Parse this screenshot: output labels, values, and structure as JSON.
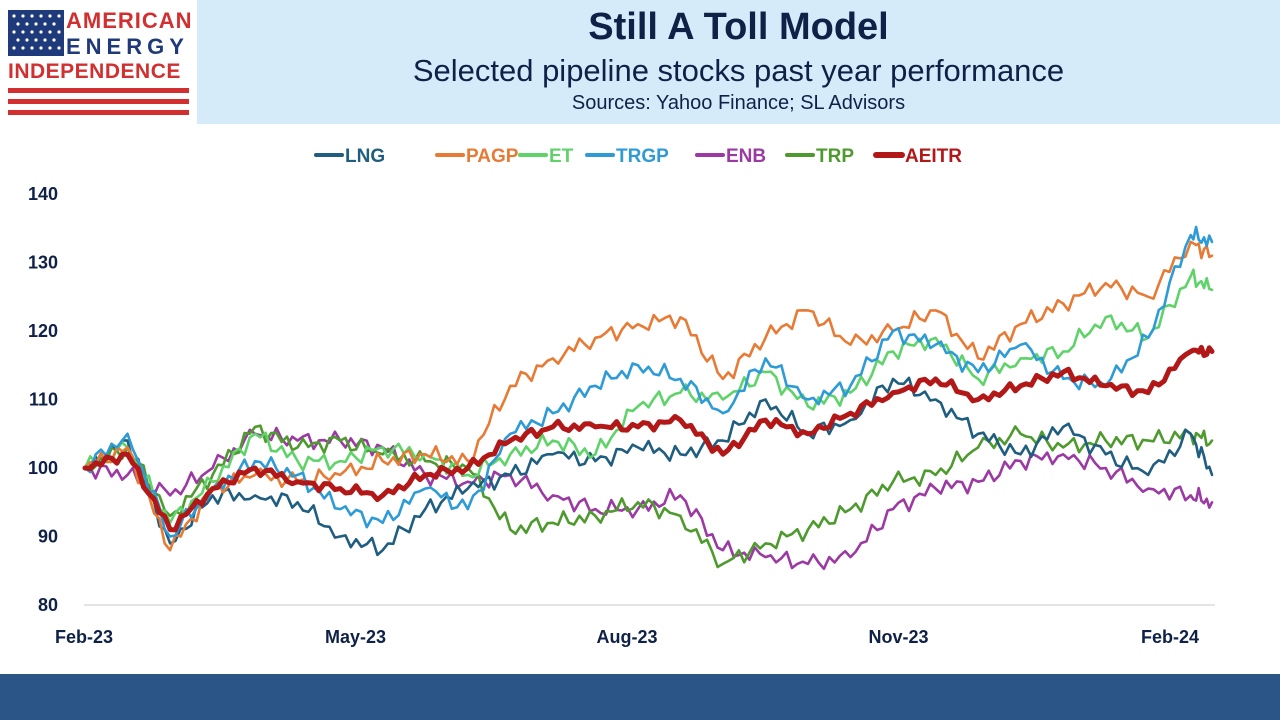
{
  "logo": {
    "line1": "AMERICAN",
    "line2": "ENERGY",
    "line3": "INDEPENDENCE",
    "colors": {
      "red": "#d23030",
      "blue": "#1f3a7a"
    }
  },
  "header": {
    "title": "Still A Toll Model",
    "subtitle": "Selected pipeline stocks past year performance",
    "sources": "Sources: Yahoo Finance; SL Advisors"
  },
  "chart_data": {
    "type": "line",
    "title": "Still A Toll Model",
    "subtitle": "Selected pipeline stocks past year performance",
    "x_tick_labels": [
      "Feb-23",
      "May-23",
      "Aug-23",
      "Nov-23",
      "Feb-24"
    ],
    "y_ticks": [
      80,
      90,
      100,
      110,
      120,
      130,
      140
    ],
    "ylim": [
      80,
      140
    ],
    "grid": false,
    "legend_position": "top",
    "x": [
      "2023-02-17",
      "2023-03-03",
      "2023-03-17",
      "2023-03-31",
      "2023-04-14",
      "2023-04-28",
      "2023-05-12",
      "2023-05-26",
      "2023-06-09",
      "2023-06-23",
      "2023-07-07",
      "2023-07-21",
      "2023-08-04",
      "2023-08-18",
      "2023-09-01",
      "2023-09-15",
      "2023-09-29",
      "2023-10-13",
      "2023-10-27",
      "2023-11-10",
      "2023-11-24",
      "2023-12-08",
      "2023-12-22",
      "2024-01-05",
      "2024-01-19",
      "2024-02-02",
      "2024-02-16",
      "2024-02-23"
    ],
    "series": [
      {
        "name": "LNG",
        "color": "#1f5e80",
        "values": [
          100,
          104,
          89,
          96,
          96,
          95,
          90,
          88,
          94,
          97,
          99,
          102,
          101,
          103,
          102,
          104,
          110,
          105,
          107,
          113,
          110,
          105,
          102,
          106,
          102,
          99,
          105,
          99
        ]
      },
      {
        "name": "PAGP",
        "color": "#e77b35",
        "values": [
          100,
          103,
          88,
          97,
          99,
          98,
          99,
          101,
          102,
          101,
          112,
          116,
          119,
          121,
          122,
          113,
          119,
          123,
          118,
          120,
          123,
          116,
          121,
          124,
          127,
          125,
          133,
          131
        ]
      },
      {
        "name": "ET",
        "color": "#5fd36a",
        "values": [
          100,
          103,
          92,
          98,
          105,
          101,
          101,
          103,
          102,
          99,
          102,
          104,
          102,
          109,
          111,
          110,
          114,
          109,
          111,
          117,
          119,
          113,
          116,
          117,
          122,
          119,
          128,
          126
        ]
      },
      {
        "name": "TRGP",
        "color": "#2e9bd6",
        "values": [
          100,
          105,
          90,
          97,
          101,
          99,
          94,
          92,
          97,
          94,
          105,
          108,
          112,
          115,
          113,
          108,
          116,
          110,
          112,
          120,
          118,
          114,
          118,
          113,
          112,
          119,
          134,
          133
        ]
      },
      {
        "name": "ENB",
        "color": "#9b3aa3",
        "values": [
          100,
          99,
          96,
          100,
          105,
          104,
          104,
          103,
          99,
          98,
          99,
          96,
          94,
          94,
          96,
          88,
          87,
          86,
          87,
          94,
          97,
          98,
          101,
          102,
          100,
          97,
          96,
          95
        ]
      },
      {
        "name": "TRP",
        "color": "#4e9a2e",
        "values": [
          100,
          103,
          93,
          99,
          106,
          103,
          104,
          102,
          101,
          100,
          91,
          92,
          93,
          95,
          93,
          86,
          89,
          91,
          94,
          98,
          99,
          103,
          105,
          103,
          104,
          104,
          105,
          104
        ]
      },
      {
        "name": "AEITR",
        "color": "#b21818",
        "values": [
          100,
          102,
          91,
          97,
          100,
          98,
          97,
          96,
          99,
          100,
          104,
          106,
          106,
          106,
          107,
          102,
          107,
          105,
          108,
          111,
          113,
          110,
          112,
          114,
          112,
          111,
          117,
          117
        ]
      }
    ]
  }
}
